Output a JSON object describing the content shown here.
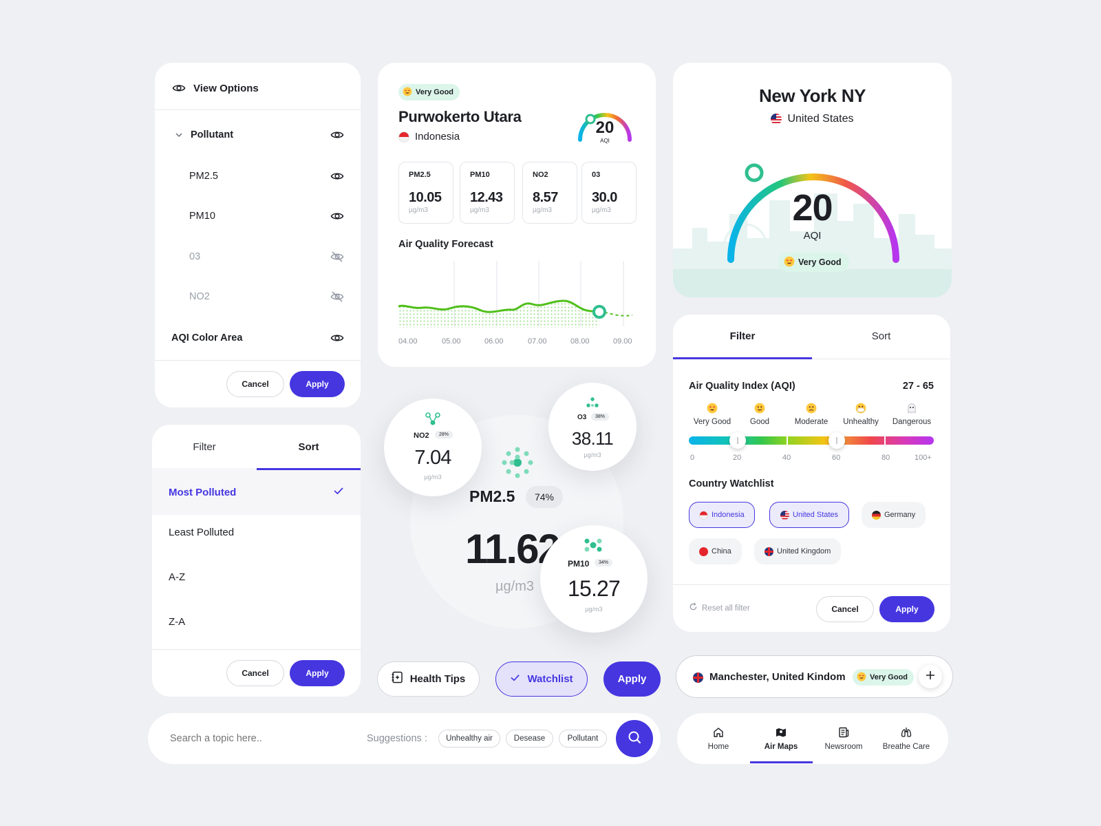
{
  "view_options": {
    "title": "View Options",
    "items": [
      {
        "label": "Pollutant",
        "visible": true
      },
      {
        "label": "PM2.5",
        "visible": true
      },
      {
        "label": "PM10",
        "visible": true
      },
      {
        "label": "03",
        "visible": false
      },
      {
        "label": "NO2",
        "visible": false
      },
      {
        "label": "AQI Color Area",
        "visible": true
      }
    ],
    "cancel": "Cancel",
    "apply": "Apply"
  },
  "sort_panel": {
    "tabs": [
      "Filter",
      "Sort"
    ],
    "active_tab": "Sort",
    "options": [
      "Most Polluted",
      "Least Polluted",
      "A-Z",
      "Z-A"
    ],
    "selected": "Most Polluted",
    "cancel": "Cancel",
    "apply": "Apply"
  },
  "location_card": {
    "badge": "Very Good",
    "city": "Purwokerto Utara",
    "country": "Indonesia",
    "aqi": "20",
    "aqi_label": "AQI",
    "metrics": [
      {
        "name": "PM2.5",
        "value": "10.05",
        "unit": "µg/m3"
      },
      {
        "name": "PM10",
        "value": "12.43",
        "unit": "µg/m3"
      },
      {
        "name": "NO2",
        "value": "8.57",
        "unit": "µg/m3"
      },
      {
        "name": "03",
        "value": "30.0",
        "unit": "µg/m3"
      }
    ],
    "forecast_title": "Air Quality Forecast",
    "forecast_times": [
      "04.00",
      "05.00",
      "06.00",
      "07.00",
      "08.00",
      "09.00"
    ]
  },
  "bubbles": {
    "main": {
      "name": "PM2.5",
      "percent": "74%",
      "value": "11.62",
      "unit": "µg/m3"
    },
    "no2": {
      "name": "NO2",
      "percent": "28%",
      "value": "7.04",
      "unit": "µg/m3"
    },
    "o3": {
      "name": "O3",
      "percent": "38%",
      "value": "38.11",
      "unit": "µg/m3"
    },
    "pm10": {
      "name": "PM10",
      "percent": "34%",
      "value": "15.27",
      "unit": "µg/m3"
    }
  },
  "city_gauge": {
    "city": "New York NY",
    "country": "United States",
    "aqi": "20",
    "aqi_label": "AQI",
    "badge": "Very Good"
  },
  "filter_panel": {
    "tabs": [
      "Filter",
      "Sort"
    ],
    "active_tab": "Filter",
    "aqi_title": "Air Quality Index (AQI)",
    "aqi_range": "27 - 65",
    "range_low_fraction": 0.27,
    "range_high_fraction": 0.65,
    "levels": [
      "Very Good",
      "Good",
      "Moderate",
      "Unhealthy",
      "Dangerous"
    ],
    "scale": [
      "0",
      "20",
      "40",
      "60",
      "80",
      "100+"
    ],
    "watchlist_title": "Country Watchlist",
    "countries": [
      {
        "name": "Indonesia",
        "selected": true
      },
      {
        "name": "United States",
        "selected": true
      },
      {
        "name": "Germany",
        "selected": false
      },
      {
        "name": "China",
        "selected": false
      },
      {
        "name": "United Kingdom",
        "selected": false
      }
    ],
    "reset": "Reset all filter",
    "cancel": "Cancel",
    "apply": "Apply"
  },
  "actions": {
    "health_tips": "Health Tips",
    "watchlist": "Watchlist",
    "apply": "Apply"
  },
  "location_chip": {
    "text": "Manchester, United Kindom",
    "badge": "Very Good"
  },
  "search": {
    "placeholder": "Search a topic here..",
    "suggestions_label": "Suggestions :",
    "suggestions": [
      "Unhealthy air",
      "Desease",
      "Pollutant"
    ]
  },
  "bottom_nav": {
    "items": [
      "Home",
      "Air Maps",
      "Newsroom",
      "Breathe Care"
    ],
    "active": "Air Maps"
  },
  "colors": {
    "accent": "#4536e0",
    "good_green": "#2fbf8f",
    "forecast_line": "#57c21f"
  }
}
